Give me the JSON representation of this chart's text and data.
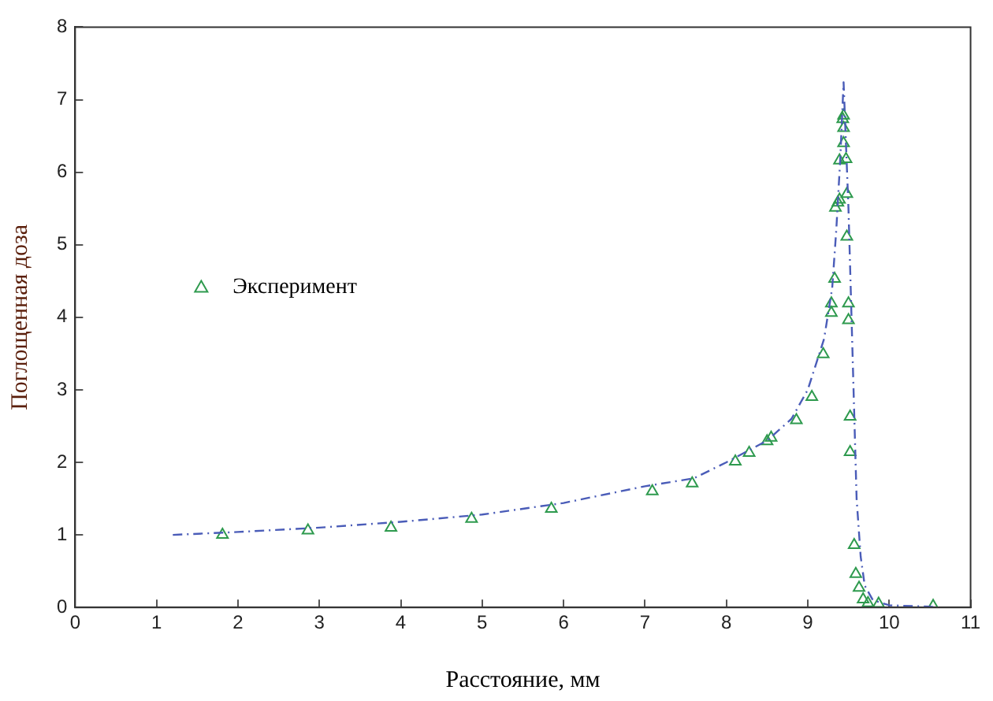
{
  "chart_data": {
    "type": "scatter",
    "xlabel": "Расстояние, мм",
    "ylabel": "Поглощенная доза",
    "xlim": [
      0,
      11
    ],
    "xticks": [
      0,
      1,
      2,
      3,
      4,
      5,
      6,
      7,
      8,
      9,
      10,
      11
    ],
    "ylim": [
      0,
      8
    ],
    "yticks": [
      0,
      1,
      2,
      3,
      4,
      5,
      6,
      7,
      8
    ],
    "grid": false,
    "legend": "left",
    "series": [
      {
        "type": "line",
        "color": "#4a5cb8",
        "line_style": "dashed",
        "marker": "none",
        "x": [
          1.2,
          2,
          3,
          4,
          5,
          6,
          7,
          7.6,
          8,
          8.5,
          8.8,
          9.0,
          9.2,
          9.3,
          9.35,
          9.4,
          9.44,
          9.5,
          9.55,
          9.6,
          9.65,
          9.7,
          9.8,
          10,
          10.5,
          10.6
        ],
        "values": [
          1.0,
          1.04,
          1.1,
          1.18,
          1.28,
          1.44,
          1.67,
          1.78,
          2.0,
          2.3,
          2.6,
          3.0,
          3.7,
          4.4,
          5.2,
          6.2,
          7.24,
          5.5,
          3.5,
          1.5,
          0.7,
          0.3,
          0.1,
          0.03,
          0.01,
          0.0
        ]
      },
      {
        "name": "Эксперимент",
        "color": "#2e9a4e",
        "marker": "triangle",
        "x": [
          1.81,
          2.86,
          3.88,
          4.87,
          5.85,
          7.09,
          7.58,
          8.11,
          8.28,
          8.5,
          8.55,
          8.86,
          9.05,
          9.19,
          9.29,
          9.29,
          9.33,
          9.34,
          9.37,
          9.39,
          9.39,
          9.47,
          9.44,
          9.44,
          9.43,
          9.44,
          9.48,
          9.48,
          9.5,
          9.5,
          9.52,
          9.52,
          9.57,
          9.59,
          9.63,
          9.68,
          9.74,
          9.87,
          10.54
        ],
        "values": [
          1.0,
          1.06,
          1.1,
          1.22,
          1.36,
          1.6,
          1.71,
          2.01,
          2.13,
          2.29,
          2.34,
          2.58,
          2.9,
          3.49,
          4.06,
          4.19,
          4.53,
          5.51,
          5.58,
          5.62,
          6.16,
          6.18,
          6.4,
          6.61,
          6.73,
          6.78,
          5.7,
          5.11,
          4.19,
          3.96,
          2.63,
          2.14,
          0.86,
          0.46,
          0.27,
          0.11,
          0.06,
          0.05,
          0.02
        ]
      }
    ]
  }
}
